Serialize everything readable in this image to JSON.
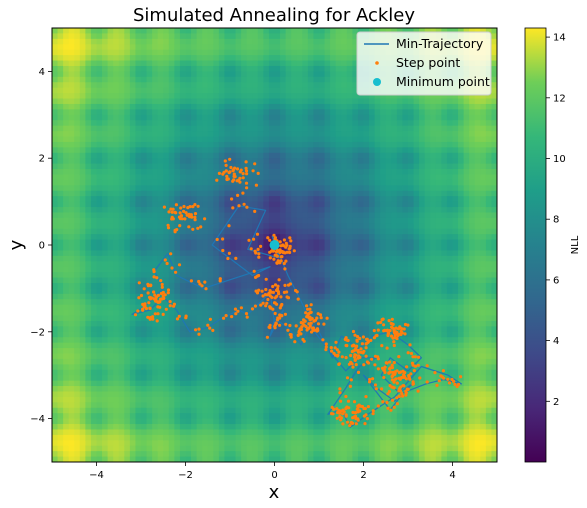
{
  "chart_data": {
    "type": "heatmap",
    "title": "Simulated Annealing for Ackley",
    "xlabel": "x",
    "ylabel": "y",
    "xlim": [
      -5,
      5
    ],
    "ylim": [
      -5,
      5
    ],
    "xticks": [
      -4,
      -2,
      0,
      2,
      4
    ],
    "yticks": [
      -4,
      -2,
      0,
      2,
      4
    ],
    "colorbar": {
      "label": "NLL",
      "range": [
        0,
        14.3
      ],
      "ticks": [
        2,
        4,
        6,
        8,
        10,
        12,
        14
      ],
      "colormap": "viridis"
    },
    "legend": {
      "placement": "top-right",
      "entries": [
        {
          "name": "Min-Trajectory",
          "kind": "line",
          "color": "#1f77b4"
        },
        {
          "name": "Step point",
          "kind": "dot",
          "color": "#ff7f0e"
        },
        {
          "name": "Minimum point",
          "kind": "bigdot",
          "color": "#17becf"
        }
      ]
    },
    "series": [
      {
        "name": "Min-Trajectory",
        "color": "#1f77b4",
        "x": [
          0.05,
          -0.05,
          0.1,
          -0.6,
          -0.2,
          -0.8,
          -1.4,
          -0.5,
          -0.1,
          -1.6,
          -2.2,
          -2.4,
          -2.7,
          -2.5,
          -2.9,
          -3.2,
          -2.8,
          -2.5,
          -2.2,
          -1.9,
          -1.5,
          -1.2,
          -0.8,
          -0.6,
          -0.1,
          0.0,
          0.2,
          -0.1,
          0.0,
          0.3,
          0.6,
          0.8,
          1.0,
          1.3,
          1.5,
          1.9,
          2.2,
          2.6,
          3.0,
          3.3,
          3.0,
          2.6,
          2.4,
          2.8,
          3.1,
          2.7,
          2.3,
          2.0,
          2.6,
          2.9,
          3.4,
          3.8,
          4.2,
          3.9,
          3.3,
          2.7,
          2.1,
          1.7,
          1.5,
          1.2,
          1.6,
          1.9,
          2.3,
          1.9,
          1.6,
          1.2,
          0.9,
          0.6,
          0.3,
          0.1,
          0.0
        ],
        "y": [
          0.05,
          0.2,
          -0.3,
          -0.1,
          0.8,
          0.9,
          0.0,
          -0.7,
          -0.5,
          -1.0,
          -0.7,
          -0.2,
          -0.6,
          -1.0,
          -1.4,
          -1.6,
          -1.5,
          -1.2,
          -1.5,
          -2.0,
          -1.9,
          -1.7,
          -1.5,
          -1.6,
          -1.1,
          -1.8,
          -1.5,
          -2.1,
          -1.7,
          -1.9,
          -2.3,
          -1.8,
          -2.0,
          -2.6,
          -2.1,
          -2.4,
          -2.1,
          -2.0,
          -2.3,
          -2.6,
          -2.9,
          -2.6,
          -3.0,
          -3.4,
          -3.2,
          -3.6,
          -3.3,
          -3.0,
          -3.8,
          -3.4,
          -3.2,
          -3.1,
          -3.2,
          -3.0,
          -2.8,
          -3.5,
          -3.9,
          -4.2,
          -3.8,
          -3.9,
          -3.3,
          -2.8,
          -2.6,
          -2.6,
          -2.9,
          -2.4,
          -2.0,
          -1.3,
          -0.7,
          -0.2,
          0.0
        ]
      },
      {
        "name": "Step point",
        "color": "#ff7f0e",
        "cluster_x": [
          -0.9,
          -2.0,
          -2.7,
          0.0,
          0.05,
          0.8,
          1.8,
          2.8,
          1.8,
          2.6
        ],
        "cluster_y": [
          1.6,
          0.6,
          -1.3,
          -1.2,
          -0.1,
          -1.8,
          -2.4,
          -3.0,
          -3.8,
          -2.0
        ]
      },
      {
        "name": "Minimum point",
        "color": "#17becf",
        "x": [
          0.0
        ],
        "y": [
          0.0
        ]
      }
    ]
  }
}
